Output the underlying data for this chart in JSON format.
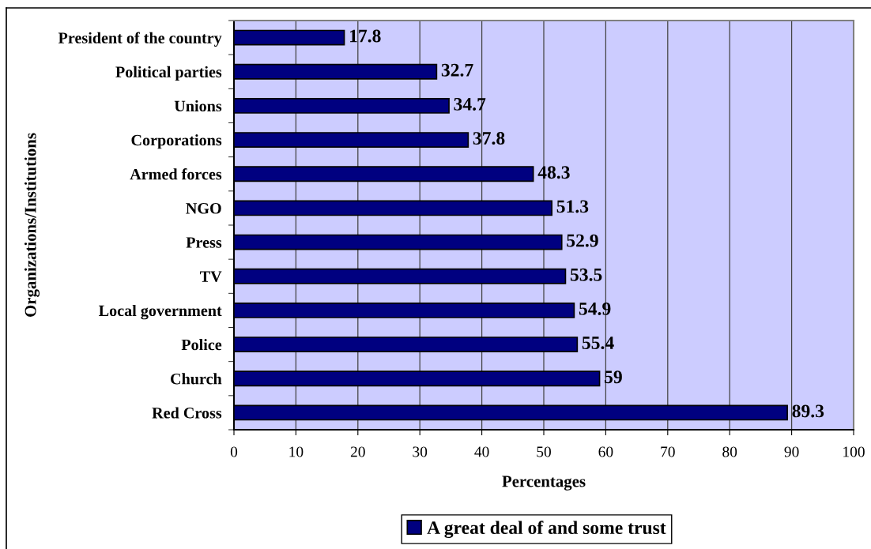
{
  "chart_data": {
    "type": "bar",
    "orientation": "horizontal",
    "xlabel": "Percentages",
    "ylabel": "Organizations/Institutions",
    "categories": [
      "President of the country",
      "Political parties",
      "Unions",
      "Corporations",
      "Armed forces",
      "NGO",
      "Press",
      "TV",
      "Local government",
      "Police",
      "Church",
      "Red Cross"
    ],
    "series": [
      {
        "name": "A great deal of and some trust",
        "color": "#000080",
        "values": [
          17.8,
          32.7,
          34.7,
          37.8,
          48.3,
          51.3,
          52.9,
          53.5,
          54.9,
          55.4,
          59,
          89.3
        ]
      }
    ],
    "xlim": [
      0,
      100
    ],
    "xticks": [
      0,
      10,
      20,
      30,
      40,
      50,
      60,
      70,
      80,
      90,
      100
    ],
    "grid": "x",
    "legend": "bottom",
    "data_labels": true
  }
}
